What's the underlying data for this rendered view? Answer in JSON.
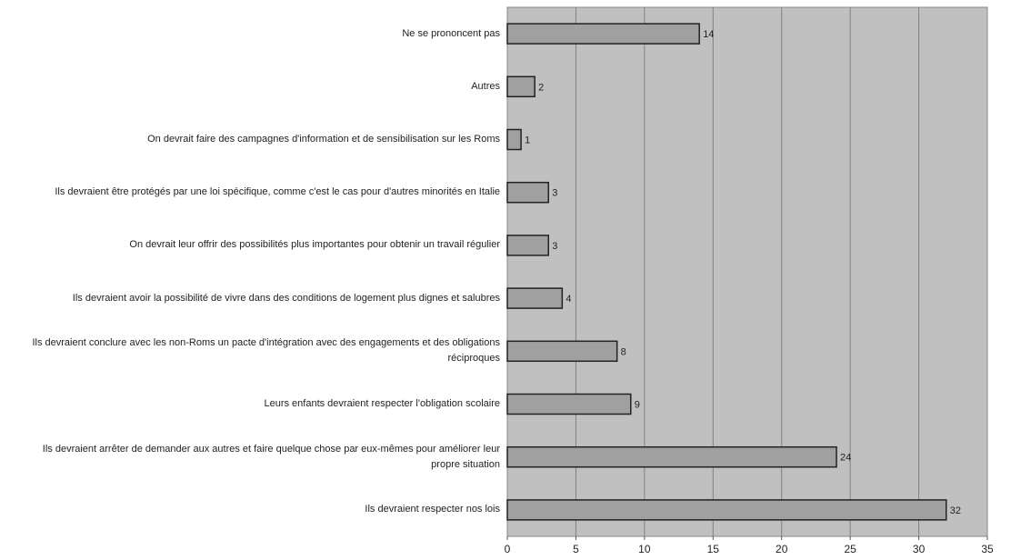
{
  "chart_data": {
    "type": "bar",
    "orientation": "horizontal",
    "title": "",
    "xlabel": "",
    "ylabel": "",
    "xlim": [
      0,
      35
    ],
    "ticks": [
      0,
      5,
      10,
      15,
      20,
      25,
      30,
      35
    ],
    "grid": true,
    "categories": [
      "Ne se prononcent pas",
      "Autres",
      "On devrait faire des campagnes d'information et de sensibilisation sur les Roms",
      "Ils devraient être protégés par une loi spécifique, comme c'est le cas pour d'autres minorités en Italie",
      "On devrait leur offrir des possibilités plus importantes pour obtenir un travail régulier",
      "Ils devraient avoir la possibilité de vivre dans des conditions de logement plus dignes et salubres",
      "Ils devraient conclure avec les non-Roms un pacte d'intégration avec des engagements et des obligations réciproques",
      "Leurs enfants devraient respecter l'obligation scolaire",
      "Ils devraient arrêter de demander aux autres et faire quelque chose par eux-mêmes pour améliorer leur propre situation",
      "Ils devraient respecter nos lois"
    ],
    "values": [
      14,
      2,
      1,
      3,
      3,
      4,
      8,
      9,
      24,
      32
    ],
    "colors": {
      "plot_background": "#c0c0c0",
      "bar_fill": "#a0a0a0",
      "bar_stroke": "#222222",
      "gridline": "#808080"
    }
  }
}
